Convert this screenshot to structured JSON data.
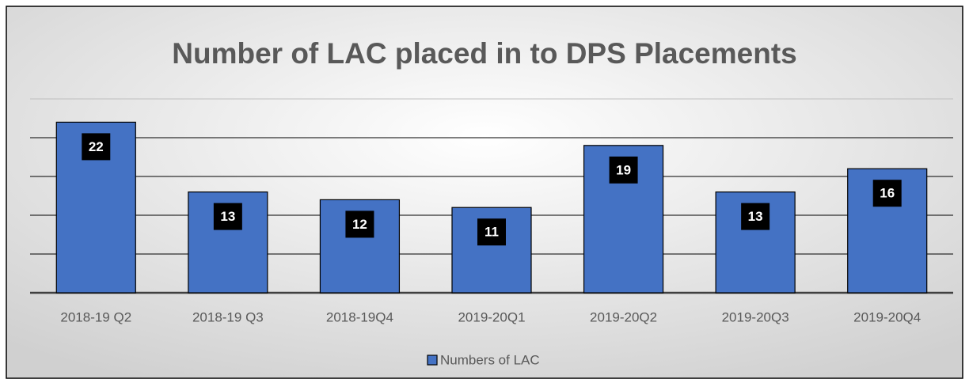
{
  "chart_data": {
    "type": "bar",
    "title": "Number of  LAC placed in to DPS Placements",
    "categories": [
      "2018-19 Q2",
      "2018-19 Q3",
      "2018-19Q4",
      "2019-20Q1",
      "2019-20Q2",
      "2019-20Q3",
      "2019-20Q4"
    ],
    "series": [
      {
        "name": "Numbers of LAC",
        "color": "#4472c4",
        "values": [
          22,
          13,
          12,
          11,
          19,
          13,
          16
        ]
      }
    ],
    "ylim": [
      0,
      25
    ],
    "yticks": [
      0,
      5,
      10,
      15,
      20,
      25
    ],
    "grid": true,
    "legend": "bottom"
  }
}
